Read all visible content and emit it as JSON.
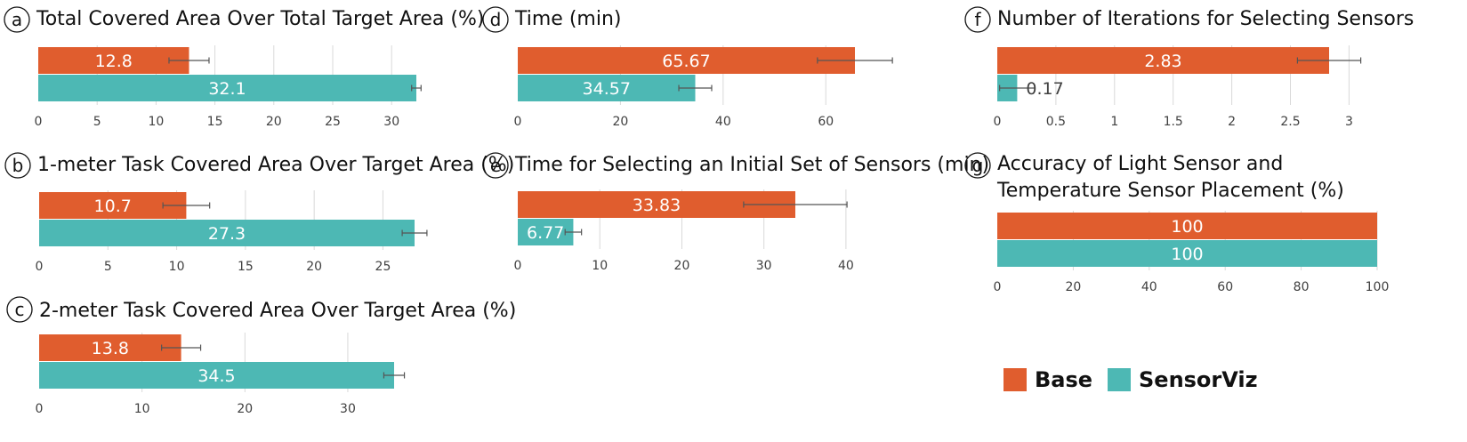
{
  "colors": {
    "base": "#E05D2E",
    "sensorviz": "#4DB8B4",
    "grid": "#D9D9D9",
    "text": "#111111"
  },
  "legend": {
    "items": [
      {
        "label": "Base",
        "color": "#E05D2E"
      },
      {
        "label": "SensorViz",
        "color": "#4DB8B4"
      }
    ]
  },
  "chart_data": [
    {
      "id": "a",
      "type": "bar",
      "orientation": "horizontal",
      "title": "Total Covered Area Over Total Target Area (%)",
      "categories": [
        "Base",
        "SensorViz"
      ],
      "values": [
        12.8,
        32.1
      ],
      "value_labels": [
        "12.8",
        "32.1"
      ],
      "error": [
        1.7,
        0.4
      ],
      "xlim": [
        0,
        32.1
      ],
      "ticks": [
        0,
        5,
        10,
        15,
        20,
        25,
        30
      ],
      "tick_labels": [
        "0",
        "5",
        "10",
        "15",
        "20",
        "25",
        "30"
      ],
      "grid": true
    },
    {
      "id": "b",
      "type": "bar",
      "orientation": "horizontal",
      "title": "1-meter Task Covered Area Over Target Area (%)",
      "categories": [
        "Base",
        "SensorViz"
      ],
      "values": [
        10.7,
        27.3
      ],
      "value_labels": [
        "10.7",
        "27.3"
      ],
      "error": [
        1.7,
        0.9
      ],
      "xlim": [
        0,
        27.3
      ],
      "ticks": [
        0,
        5,
        10,
        15,
        20,
        25
      ],
      "tick_labels": [
        "0",
        "5",
        "10",
        "15",
        "20",
        "25"
      ],
      "grid": true
    },
    {
      "id": "c",
      "type": "bar",
      "orientation": "horizontal",
      "title": "2-meter Task Covered Area Over Target Area (%)",
      "categories": [
        "Base",
        "SensorViz"
      ],
      "values": [
        13.8,
        34.5
      ],
      "value_labels": [
        "13.8",
        "34.5"
      ],
      "error": [
        1.9,
        1.0
      ],
      "xlim": [
        0,
        34.5
      ],
      "ticks": [
        0,
        10,
        20,
        30
      ],
      "tick_labels": [
        "0",
        "10",
        "20",
        "30"
      ],
      "grid": true
    },
    {
      "id": "d",
      "type": "bar",
      "orientation": "horizontal",
      "title": "Time (min)",
      "categories": [
        "Base",
        "SensorViz"
      ],
      "values": [
        65.67,
        34.57
      ],
      "value_labels": [
        "65.67",
        "34.57"
      ],
      "error": [
        7.3,
        3.2
      ],
      "xlim": [
        0,
        65.67
      ],
      "ticks": [
        0,
        20,
        40,
        60
      ],
      "tick_labels": [
        "0",
        "20",
        "40",
        "60"
      ],
      "grid": true
    },
    {
      "id": "e",
      "type": "bar",
      "orientation": "horizontal",
      "title": "Time for Selecting an Initial Set of Sensors (min)",
      "categories": [
        "Base",
        "SensorViz"
      ],
      "values": [
        33.83,
        6.77
      ],
      "value_labels": [
        "33.83",
        "6.77"
      ],
      "error": [
        6.3,
        1.0
      ],
      "xlim": [
        0,
        33.83
      ],
      "ticks": [
        0,
        10,
        20,
        30,
        40
      ],
      "tick_labels": [
        "0",
        "10",
        "20",
        "30",
        "40"
      ],
      "grid": true
    },
    {
      "id": "f",
      "type": "bar",
      "orientation": "horizontal",
      "title": "Number of Iterations for Selecting Sensors",
      "categories": [
        "Base",
        "SensorViz"
      ],
      "values": [
        2.83,
        0.17
      ],
      "value_labels": [
        "2.83",
        "0.17"
      ],
      "error": [
        0.27,
        0.15
      ],
      "xlim": [
        0,
        2.83
      ],
      "ticks": [
        0,
        0.5,
        1,
        1.5,
        2,
        2.5,
        3
      ],
      "tick_labels": [
        "0",
        "0.5",
        "1",
        "1.5",
        "2",
        "2.5",
        "3"
      ],
      "grid": true
    },
    {
      "id": "g",
      "type": "bar",
      "orientation": "horizontal",
      "title_lines": [
        "Accuracy of Light Sensor and",
        "Temperature Sensor Placement (%)"
      ],
      "categories": [
        "Base",
        "SensorViz"
      ],
      "values": [
        100,
        100
      ],
      "value_labels": [
        "100",
        "100"
      ],
      "error": [
        0,
        0
      ],
      "xlim": [
        0,
        100
      ],
      "ticks": [
        0,
        20,
        40,
        60,
        80,
        100
      ],
      "tick_labels": [
        "0",
        "20",
        "40",
        "60",
        "80",
        "100"
      ],
      "grid": true
    }
  ]
}
